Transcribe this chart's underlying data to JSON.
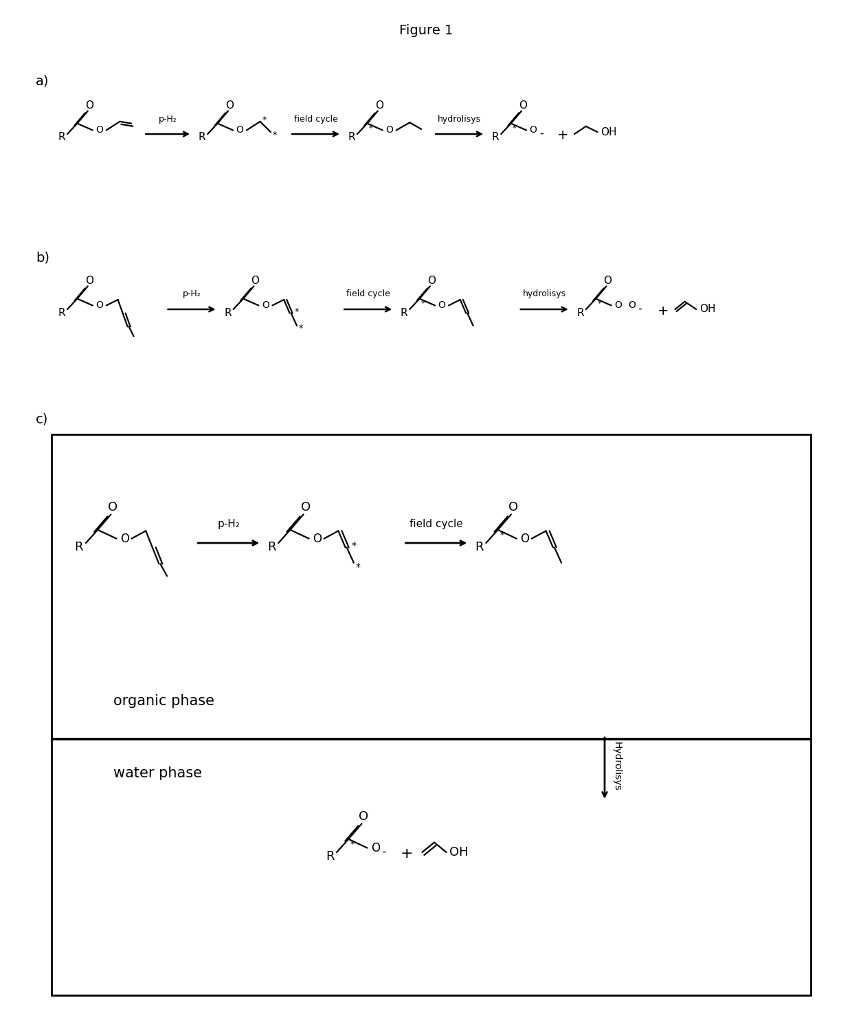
{
  "title": "Figure 1",
  "bg_color": "#ffffff",
  "fig_width": 12.4,
  "fig_height": 14.84,
  "section_a_label": "a)",
  "section_b_label": "b)",
  "section_c_label": "c)",
  "arrow_labels_a": [
    "p-H₂",
    "field cycle",
    "hydrolisys"
  ],
  "arrow_labels_b": [
    "p-H₂",
    "field cycle",
    "hydrolisys"
  ],
  "arrow_labels_c_h": [
    "p-H₂",
    "field cycle"
  ],
  "arrow_label_c_v": "Hydrolisys",
  "organic_phase": "organic phase",
  "water_phase": "water phase"
}
